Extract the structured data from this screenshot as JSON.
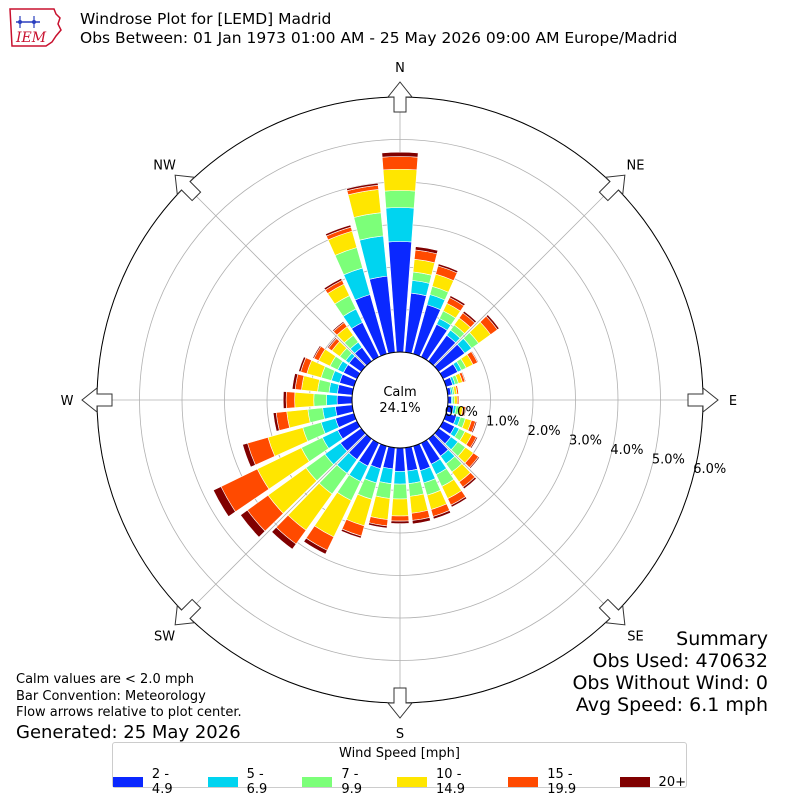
{
  "header": {
    "title": "Windrose Plot for [LEMD] Madrid",
    "subtitle": "Obs Between: 01 Jan 1973 01:00 AM - 25 May 2026 09:00 AM Europe/Madrid",
    "logo_text": "IEM"
  },
  "summary": {
    "heading": "Summary",
    "obs_used": "Obs Used: 470632",
    "obs_without_wind": "Obs Without Wind: 0",
    "avg_speed": "Avg Speed: 6.1 mph"
  },
  "notes": {
    "calm_note": "Calm values are < 2.0 mph",
    "bar_convention": "Bar Convention: Meteorology",
    "flow_arrows": "Flow arrows relative to plot center.",
    "generated": "Generated: 25 May 2026"
  },
  "chart_data": {
    "type": "windrose",
    "calm_label": "Calm",
    "calm_value": "24.1%",
    "radial_unit": "%",
    "radial_ticks": [
      "0.0%",
      "1.0%",
      "2.0%",
      "3.0%",
      "4.0%",
      "5.0%",
      "6.0%"
    ],
    "rlim": [
      0,
      6.0
    ],
    "compass_labels": [
      "N",
      "NE",
      "E",
      "SE",
      "S",
      "SW",
      "W",
      "NW"
    ],
    "legend_title": "Wind Speed [mph]",
    "bins": [
      {
        "label": "2 - 4.9",
        "color": "#0a28ff"
      },
      {
        "label": "5 - 6.9",
        "color": "#00d4f0"
      },
      {
        "label": "7 - 9.9",
        "color": "#7cff79"
      },
      {
        "label": "10 - 14.9",
        "color": "#ffe600"
      },
      {
        "label": "15 - 19.9",
        "color": "#ff4a00"
      },
      {
        "label": "20+",
        "color": "#800000"
      }
    ],
    "sector_width_deg": 10,
    "directions_deg": [
      0,
      10,
      20,
      30,
      40,
      50,
      60,
      70,
      80,
      90,
      100,
      110,
      120,
      130,
      140,
      150,
      160,
      170,
      180,
      190,
      200,
      210,
      220,
      230,
      240,
      250,
      260,
      270,
      280,
      290,
      300,
      310,
      320,
      330,
      340,
      350
    ],
    "cumulative_percent": [
      [
        2.6,
        3.4,
        3.8,
        4.3,
        4.6,
        4.7
      ],
      [
        1.4,
        1.7,
        1.9,
        2.2,
        2.42,
        2.5
      ],
      [
        1.2,
        1.45,
        1.65,
        1.95,
        2.15,
        2.2
      ],
      [
        0.85,
        1.0,
        1.2,
        1.4,
        1.55,
        1.6
      ],
      [
        0.75,
        0.9,
        1.05,
        1.25,
        1.4,
        1.45
      ],
      [
        0.75,
        0.95,
        1.15,
        1.5,
        1.7,
        1.75
      ],
      [
        0.38,
        0.48,
        0.6,
        0.78,
        0.9,
        0.92
      ],
      [
        0.16,
        0.22,
        0.3,
        0.4,
        0.46,
        0.48
      ],
      [
        0.08,
        0.12,
        0.16,
        0.22,
        0.26,
        0.27
      ],
      [
        0.08,
        0.11,
        0.15,
        0.22,
        0.26,
        0.27
      ],
      [
        0.14,
        0.2,
        0.27,
        0.36,
        0.42,
        0.44
      ],
      [
        0.25,
        0.35,
        0.47,
        0.62,
        0.72,
        0.75
      ],
      [
        0.3,
        0.42,
        0.57,
        0.75,
        0.87,
        0.9
      ],
      [
        0.35,
        0.55,
        0.77,
        1.0,
        1.15,
        1.18
      ],
      [
        0.5,
        0.72,
        0.96,
        1.25,
        1.4,
        1.45
      ],
      [
        0.55,
        0.82,
        1.13,
        1.45,
        1.62,
        1.67
      ],
      [
        0.6,
        0.9,
        1.2,
        1.55,
        1.72,
        1.78
      ],
      [
        0.55,
        0.85,
        1.15,
        1.55,
        1.72,
        1.8
      ],
      [
        0.55,
        0.85,
        1.2,
        1.6,
        1.72,
        1.78
      ],
      [
        0.5,
        0.85,
        1.2,
        1.7,
        1.85,
        1.9
      ],
      [
        0.55,
        0.9,
        1.3,
        1.95,
        2.2,
        2.25
      ],
      [
        0.6,
        1.0,
        1.5,
        2.45,
        2.8,
        2.9
      ],
      [
        0.6,
        1.0,
        1.6,
        2.65,
        3.05,
        3.2
      ],
      [
        0.6,
        1.05,
        1.6,
        2.7,
        3.3,
        3.5
      ],
      [
        0.5,
        0.9,
        1.45,
        2.6,
        3.55,
        3.75
      ],
      [
        0.45,
        0.8,
        1.25,
        2.1,
        2.6,
        2.72
      ],
      [
        0.4,
        0.7,
        1.05,
        1.55,
        1.8,
        1.87
      ],
      [
        0.35,
        0.6,
        0.9,
        1.35,
        1.55,
        1.62
      ],
      [
        0.35,
        0.55,
        0.82,
        1.2,
        1.35,
        1.42
      ],
      [
        0.35,
        0.55,
        0.8,
        1.15,
        1.3,
        1.35
      ],
      [
        0.35,
        0.5,
        0.7,
        1.0,
        1.12,
        1.15
      ],
      [
        0.35,
        0.45,
        0.62,
        0.85,
        0.95,
        0.98
      ],
      [
        0.4,
        0.55,
        0.75,
        1.0,
        1.12,
        1.15
      ],
      [
        0.9,
        1.25,
        1.6,
        1.9,
        2.0,
        2.05
      ],
      [
        1.45,
        2.1,
        2.6,
        3.0,
        3.1,
        3.15
      ],
      [
        1.8,
        2.75,
        3.3,
        3.85,
        3.95,
        4.0
      ]
    ]
  }
}
